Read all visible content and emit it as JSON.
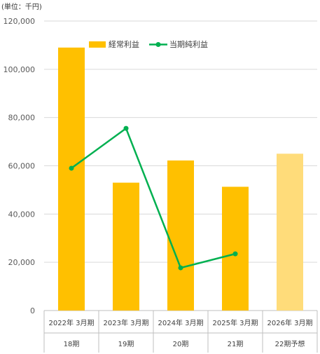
{
  "unit_label": "(単位：千円)",
  "chart_data": {
    "type": "bar",
    "categories": [
      "2022年 3月期",
      "2023年 3月期",
      "2024年 3月期",
      "2025年 3月期",
      "2026年 3月期"
    ],
    "sub_categories": [
      "18期",
      "19期",
      "20期",
      "21期",
      "22期予想"
    ],
    "ylim": [
      0,
      120000
    ],
    "yticks": [
      0,
      20000,
      40000,
      60000,
      80000,
      100000,
      120000
    ],
    "ytick_labels": [
      "0",
      "20,000",
      "40,000",
      "60,000",
      "80,000",
      "100,000",
      "120,000"
    ],
    "grid": true,
    "legend_position": "top",
    "series": [
      {
        "name": "経常利益",
        "type": "bar",
        "values": [
          109000,
          53000,
          62200,
          51300,
          65000
        ],
        "color": "#FFC000",
        "forecast_color": "#FFDC7A",
        "forecast_index": 4
      },
      {
        "name": "当期純利益",
        "type": "line",
        "values": [
          59000,
          75500,
          17700,
          23500,
          null
        ],
        "color": "#00B050"
      }
    ]
  }
}
